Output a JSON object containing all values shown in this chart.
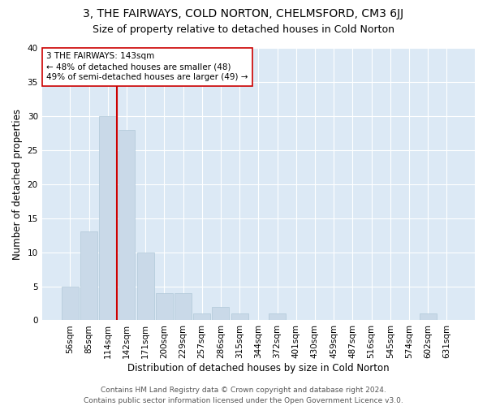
{
  "title": "3, THE FAIRWAYS, COLD NORTON, CHELMSFORD, CM3 6JJ",
  "subtitle": "Size of property relative to detached houses in Cold Norton",
  "xlabel": "Distribution of detached houses by size in Cold Norton",
  "ylabel": "Number of detached properties",
  "bar_color": "#c9d9e8",
  "bar_edge_color": "#b0c8d8",
  "background_color": "#dce9f5",
  "grid_color": "#ffffff",
  "categories": [
    "56sqm",
    "85sqm",
    "114sqm",
    "142sqm",
    "171sqm",
    "200sqm",
    "229sqm",
    "257sqm",
    "286sqm",
    "315sqm",
    "344sqm",
    "372sqm",
    "401sqm",
    "430sqm",
    "459sqm",
    "487sqm",
    "516sqm",
    "545sqm",
    "574sqm",
    "602sqm",
    "631sqm"
  ],
  "values": [
    5,
    13,
    30,
    28,
    10,
    4,
    4,
    1,
    2,
    1,
    0,
    1,
    0,
    0,
    0,
    0,
    0,
    0,
    0,
    1,
    0
  ],
  "ylim": [
    0,
    40
  ],
  "yticks": [
    0,
    5,
    10,
    15,
    20,
    25,
    30,
    35,
    40
  ],
  "vline_index": 2,
  "vline_color": "#cc0000",
  "annotation_text": "3 THE FAIRWAYS: 143sqm\n← 48% of detached houses are smaller (48)\n49% of semi-detached houses are larger (49) →",
  "annotation_box_color": "#ffffff",
  "annotation_box_edge_color": "#cc0000",
  "footer_text": "Contains HM Land Registry data © Crown copyright and database right 2024.\nContains public sector information licensed under the Open Government Licence v3.0.",
  "title_fontsize": 10,
  "subtitle_fontsize": 9,
  "xlabel_fontsize": 8.5,
  "ylabel_fontsize": 8.5,
  "tick_fontsize": 7.5,
  "annotation_fontsize": 7.5,
  "footer_fontsize": 6.5
}
